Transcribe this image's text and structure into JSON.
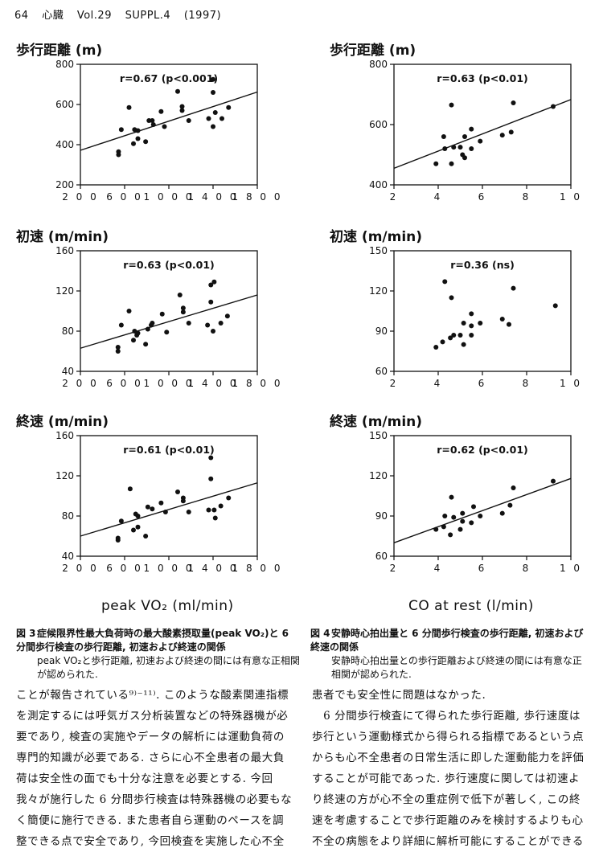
{
  "header": {
    "page": "64",
    "journal": "心臓",
    "volume": "Vol.29",
    "suppl": "SUPPL.4",
    "year": "(1997)"
  },
  "xlabels": {
    "left": "peak VO₂ (ml/min)",
    "right": "CO at rest (l/min)"
  },
  "captions": {
    "fig3": {
      "num": "図 3",
      "head": "症候限界性最大負荷時の最大酸素摂取量(peak VO₂)と 6 分間歩行検査の歩行距離, 初速および終速の関係",
      "body": "peak VO₂と歩行距離, 初速および終速の間には有意な正相関が認められた."
    },
    "fig4": {
      "num": "図 4",
      "head": "安静時心拍出量と 6 分間歩行検査の歩行距離, 初速および終速の関係",
      "body": "安静時心拍出量との歩行距離および終速の間には有意な正相関が認められた."
    }
  },
  "body_text": {
    "left": [
      "ことが報告されている⁹⁾⁻¹¹⁾. このような酸素関連指標",
      "を測定するには呼気ガス分析装置などの特殊器機が必",
      "要であり, 検査の実施やデータの解析には運動負荷の",
      "専門的知識が必要である. さらに心不全患者の最大負",
      "荷は安全性の面でも十分な注意を必要とする. 今回",
      "我々が施行した 6 分間歩行検査は特殊器機の必要もな",
      "く簡便に施行できる. また患者自ら運動のペースを調",
      "整できる点で安全であり, 今回検査を実施した心不全"
    ],
    "right": [
      "患者でも安全性に問題はなかった.",
      "　6 分間歩行検査にて得られた歩行距離, 歩行速度は",
      "歩行という運動様式から得られる指標であるという点",
      "からも心不全患者の日常生活に即した運動能力を評価",
      "することが可能であった. 歩行速度に関しては初速よ",
      "り終速の方が心不全の重症例で低下が著しく, この終",
      "速を考慮することで歩行距離のみを検討するよりも心",
      "不全の病態をより詳細に解析可能にすることができる"
    ]
  },
  "chart_data": [
    {
      "type": "scatter",
      "title": "歩行距離 (m)",
      "annotation": "r=0.67 (p<0.001)",
      "xlim": [
        200,
        1800
      ],
      "ylim": [
        200,
        800
      ],
      "xticks": [
        "2 0 0",
        "6 0 0",
        "1 0 0 0",
        "1 4 0 0",
        "1 8 0 0"
      ],
      "xtick_values": [
        200,
        600,
        1000,
        1400,
        1800
      ],
      "yticks": [
        "200",
        "400",
        "600",
        "800"
      ],
      "ytick_values": [
        200,
        400,
        600,
        800
      ],
      "regression": [
        [
          200,
          372
        ],
        [
          1800,
          662
        ]
      ],
      "points": [
        [
          545,
          350
        ],
        [
          545,
          365
        ],
        [
          570,
          475
        ],
        [
          640,
          585
        ],
        [
          680,
          405
        ],
        [
          690,
          475
        ],
        [
          720,
          430
        ],
        [
          720,
          470
        ],
        [
          790,
          415
        ],
        [
          820,
          520
        ],
        [
          850,
          520
        ],
        [
          860,
          500
        ],
        [
          930,
          565
        ],
        [
          960,
          490
        ],
        [
          1080,
          665
        ],
        [
          1120,
          590
        ],
        [
          1120,
          570
        ],
        [
          1180,
          520
        ],
        [
          1360,
          530
        ],
        [
          1400,
          725
        ],
        [
          1400,
          660
        ],
        [
          1400,
          490
        ],
        [
          1420,
          560
        ],
        [
          1480,
          530
        ],
        [
          1540,
          585
        ]
      ]
    },
    {
      "type": "scatter",
      "title": "初速 (m/min)",
      "annotation": "r=0.63 (p<0.01)",
      "xlim": [
        200,
        1800
      ],
      "ylim": [
        40,
        160
      ],
      "xticks": [
        "2 0 0",
        "6 0 0",
        "1 0 0 0",
        "1 4 0 0",
        "1 8 0 0"
      ],
      "xtick_values": [
        200,
        600,
        1000,
        1400,
        1800
      ],
      "yticks": [
        "40",
        "80",
        "120",
        "160"
      ],
      "ytick_values": [
        40,
        80,
        120,
        160
      ],
      "regression": [
        [
          200,
          63
        ],
        [
          1800,
          116
        ]
      ],
      "points": [
        [
          540,
          60
        ],
        [
          540,
          64
        ],
        [
          570,
          86
        ],
        [
          640,
          100
        ],
        [
          680,
          71
        ],
        [
          690,
          80
        ],
        [
          710,
          76
        ],
        [
          720,
          78
        ],
        [
          790,
          67
        ],
        [
          810,
          82
        ],
        [
          840,
          86
        ],
        [
          850,
          88
        ],
        [
          940,
          97
        ],
        [
          980,
          79
        ],
        [
          1100,
          116
        ],
        [
          1130,
          103
        ],
        [
          1130,
          99
        ],
        [
          1180,
          88
        ],
        [
          1350,
          86
        ],
        [
          1380,
          126
        ],
        [
          1380,
          109
        ],
        [
          1410,
          129
        ],
        [
          1400,
          80
        ],
        [
          1470,
          88
        ],
        [
          1530,
          95
        ]
      ]
    },
    {
      "type": "scatter",
      "title": "終速 (m/min)",
      "annotation": "r=0.61 (p<0.01)",
      "xlim": [
        200,
        1800
      ],
      "ylim": [
        40,
        160
      ],
      "xticks": [
        "2 0 0",
        "6 0 0",
        "1 0 0 0",
        "1 4 0 0",
        "1 8 0 0"
      ],
      "xtick_values": [
        200,
        600,
        1000,
        1400,
        1800
      ],
      "yticks": [
        "40",
        "80",
        "120",
        "160"
      ],
      "ytick_values": [
        40,
        80,
        120,
        160
      ],
      "regression": [
        [
          200,
          60
        ],
        [
          1800,
          113
        ]
      ],
      "points": [
        [
          540,
          56
        ],
        [
          540,
          58
        ],
        [
          570,
          75
        ],
        [
          650,
          107
        ],
        [
          680,
          66
        ],
        [
          700,
          82
        ],
        [
          720,
          69
        ],
        [
          720,
          80
        ],
        [
          790,
          60
        ],
        [
          810,
          89
        ],
        [
          850,
          87
        ],
        [
          930,
          93
        ],
        [
          970,
          84
        ],
        [
          1080,
          104
        ],
        [
          1130,
          98
        ],
        [
          1130,
          95
        ],
        [
          1180,
          84
        ],
        [
          1360,
          86
        ],
        [
          1380,
          138
        ],
        [
          1380,
          117
        ],
        [
          1410,
          86
        ],
        [
          1420,
          78
        ],
        [
          1470,
          90
        ],
        [
          1540,
          98
        ]
      ]
    },
    {
      "type": "scatter",
      "title": "歩行距離 (m)",
      "annotation": "r=0.63 (p<0.01)",
      "xlim": [
        2,
        10
      ],
      "ylim": [
        400,
        800
      ],
      "xticks": [
        "2",
        "4",
        "6",
        "8",
        "1 0"
      ],
      "xtick_values": [
        2,
        4,
        6,
        8,
        10
      ],
      "yticks": [
        "400",
        "600",
        "800"
      ],
      "ytick_values": [
        400,
        600,
        800
      ],
      "regression": [
        [
          2,
          455
        ],
        [
          10,
          683
        ]
      ],
      "points": [
        [
          3.9,
          470
        ],
        [
          4.25,
          560
        ],
        [
          4.3,
          520
        ],
        [
          4.6,
          665
        ],
        [
          4.6,
          470
        ],
        [
          4.7,
          525
        ],
        [
          5.0,
          525
        ],
        [
          5.1,
          500
        ],
        [
          5.2,
          490
        ],
        [
          5.2,
          560
        ],
        [
          5.5,
          520
        ],
        [
          5.5,
          585
        ],
        [
          5.9,
          545
        ],
        [
          6.9,
          565
        ],
        [
          7.3,
          575
        ],
        [
          7.4,
          672
        ],
        [
          9.2,
          660
        ]
      ]
    },
    {
      "type": "scatter",
      "title": "初速 (m/min)",
      "annotation": "r=0.36 (ns)",
      "xlim": [
        2,
        10
      ],
      "ylim": [
        60,
        150
      ],
      "xticks": [
        "2",
        "4",
        "6",
        "8",
        "1 0"
      ],
      "xtick_values": [
        2,
        4,
        6,
        8,
        10
      ],
      "yticks": [
        "60",
        "90",
        "120",
        "150"
      ],
      "ytick_values": [
        60,
        90,
        120,
        150
      ],
      "points": [
        [
          3.9,
          78
        ],
        [
          4.2,
          82
        ],
        [
          4.3,
          127
        ],
        [
          4.55,
          85
        ],
        [
          4.6,
          115
        ],
        [
          4.7,
          87
        ],
        [
          5.0,
          87
        ],
        [
          5.15,
          80
        ],
        [
          5.15,
          96
        ],
        [
          5.5,
          87
        ],
        [
          5.5,
          103
        ],
        [
          5.5,
          94
        ],
        [
          5.9,
          96
        ],
        [
          6.9,
          99
        ],
        [
          7.2,
          95
        ],
        [
          7.4,
          122
        ],
        [
          9.3,
          109
        ]
      ]
    },
    {
      "type": "scatter",
      "title": "終速 (m/min)",
      "annotation": "r=0.62 (p<0.01)",
      "xlim": [
        2,
        10
      ],
      "ylim": [
        60,
        150
      ],
      "xticks": [
        "2",
        "4",
        "6",
        "8",
        "1 0"
      ],
      "xtick_values": [
        2,
        4,
        6,
        8,
        10
      ],
      "yticks": [
        "60",
        "90",
        "120",
        "150"
      ],
      "ytick_values": [
        60,
        90,
        120,
        150
      ],
      "regression": [
        [
          2,
          70
        ],
        [
          10,
          118
        ]
      ],
      "points": [
        [
          3.9,
          80
        ],
        [
          4.25,
          82
        ],
        [
          4.3,
          90
        ],
        [
          4.55,
          76
        ],
        [
          4.6,
          104
        ],
        [
          4.7,
          89
        ],
        [
          5.0,
          80
        ],
        [
          5.1,
          86
        ],
        [
          5.1,
          92
        ],
        [
          5.5,
          85
        ],
        [
          5.6,
          97
        ],
        [
          5.9,
          90
        ],
        [
          6.9,
          92
        ],
        [
          7.25,
          98
        ],
        [
          7.4,
          111
        ],
        [
          9.2,
          116
        ]
      ]
    }
  ]
}
